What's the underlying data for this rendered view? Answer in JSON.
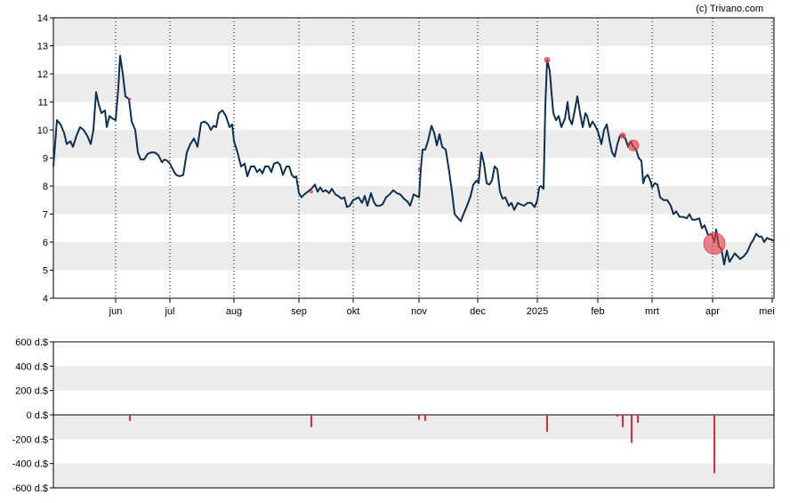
{
  "credit": "(c) Trivano.com",
  "chart_data": [
    {
      "type": "line",
      "ylim": [
        4,
        14
      ],
      "y_ticks": [
        "4",
        "5",
        "6",
        "7",
        "8",
        "9",
        "10",
        "11",
        "12",
        "13",
        "14"
      ],
      "x_ticks": [
        {
          "label": "jun",
          "t": 70
        },
        {
          "label": "jul",
          "t": 131
        },
        {
          "label": "aug",
          "t": 203
        },
        {
          "label": "sep",
          "t": 276
        },
        {
          "label": "okt",
          "t": 337
        },
        {
          "label": "nov",
          "t": 411
        },
        {
          "label": "dec",
          "t": 477
        },
        {
          "label": "2025",
          "t": 544
        },
        {
          "label": "feb",
          "t": 612
        },
        {
          "label": "mrt",
          "t": 673
        },
        {
          "label": "apr",
          "t": 741
        },
        {
          "label": "mei",
          "t": 808
        }
      ],
      "t_range": [
        0,
        810
      ],
      "grid": "alternating horizontal bands, dotted vertical month lines",
      "colors": {
        "line": "#0d3050",
        "band": "#ececec",
        "marker": "#e8404a"
      },
      "series": [
        {
          "points": [
            [
              0,
              8.7
            ],
            [
              4,
              10.35
            ],
            [
              8,
              10.2
            ],
            [
              12,
              9.9
            ],
            [
              15,
              9.5
            ],
            [
              19,
              9.6
            ],
            [
              22,
              9.4
            ],
            [
              26,
              9.8
            ],
            [
              30,
              10.1
            ],
            [
              34,
              10.0
            ],
            [
              38,
              9.8
            ],
            [
              42,
              9.5
            ],
            [
              45,
              10.0
            ],
            [
              48,
              11.35
            ],
            [
              51,
              10.9
            ],
            [
              54,
              10.6
            ],
            [
              58,
              10.7
            ],
            [
              60,
              10.1
            ],
            [
              63,
              10.5
            ],
            [
              67,
              10.4
            ],
            [
              70,
              10.35
            ],
            [
              73,
              11.5
            ],
            [
              75,
              12.65
            ],
            [
              78,
              12.0
            ],
            [
              81,
              11.2
            ],
            [
              85,
              11.1
            ],
            [
              88,
              10.3
            ],
            [
              92,
              10.0
            ],
            [
              95,
              9.2
            ],
            [
              98,
              8.95
            ],
            [
              102,
              8.95
            ],
            [
              106,
              9.15
            ],
            [
              110,
              9.2
            ],
            [
              114,
              9.2
            ],
            [
              118,
              9.1
            ],
            [
              122,
              8.85
            ],
            [
              125,
              8.95
            ],
            [
              128,
              8.9
            ],
            [
              131,
              8.8
            ],
            [
              135,
              8.55
            ],
            [
              138,
              8.4
            ],
            [
              142,
              8.35
            ],
            [
              146,
              8.4
            ],
            [
              150,
              9.2
            ],
            [
              154,
              9.5
            ],
            [
              158,
              9.7
            ],
            [
              162,
              9.4
            ],
            [
              166,
              10.25
            ],
            [
              170,
              10.3
            ],
            [
              174,
              10.2
            ],
            [
              177,
              10.0
            ],
            [
              180,
              10.15
            ],
            [
              183,
              10.1
            ],
            [
              186,
              10.6
            ],
            [
              190,
              10.7
            ],
            [
              194,
              10.5
            ],
            [
              198,
              10.1
            ],
            [
              201,
              10.2
            ],
            [
              203,
              9.6
            ],
            [
              207,
              9.2
            ],
            [
              211,
              8.7
            ],
            [
              215,
              8.8
            ],
            [
              218,
              8.35
            ],
            [
              222,
              8.7
            ],
            [
              226,
              8.7
            ],
            [
              229,
              8.5
            ],
            [
              232,
              8.6
            ],
            [
              235,
              8.45
            ],
            [
              238,
              8.7
            ],
            [
              242,
              8.7
            ],
            [
              245,
              8.5
            ],
            [
              248,
              8.8
            ],
            [
              252,
              8.85
            ],
            [
              255,
              8.75
            ],
            [
              258,
              8.4
            ],
            [
              262,
              8.7
            ],
            [
              265,
              8.7
            ],
            [
              268,
              8.4
            ],
            [
              271,
              8.3
            ],
            [
              273,
              8.35
            ],
            [
              276,
              7.75
            ],
            [
              279,
              7.6
            ],
            [
              282,
              7.7
            ],
            [
              286,
              7.8
            ],
            [
              290,
              7.9
            ],
            [
              294,
              8.05
            ],
            [
              297,
              7.8
            ],
            [
              300,
              7.95
            ],
            [
              303,
              7.8
            ],
            [
              306,
              7.85
            ],
            [
              310,
              7.75
            ],
            [
              313,
              7.9
            ],
            [
              317,
              7.7
            ],
            [
              320,
              7.65
            ],
            [
              324,
              7.55
            ],
            [
              327,
              7.6
            ],
            [
              330,
              7.25
            ],
            [
              333,
              7.3
            ],
            [
              337,
              7.5
            ],
            [
              340,
              7.55
            ],
            [
              343,
              7.6
            ],
            [
              347,
              7.4
            ],
            [
              350,
              7.65
            ],
            [
              353,
              7.3
            ],
            [
              357,
              7.75
            ],
            [
              360,
              7.45
            ],
            [
              363,
              7.3
            ],
            [
              367,
              7.3
            ],
            [
              370,
              7.35
            ],
            [
              374,
              7.6
            ],
            [
              378,
              7.7
            ],
            [
              382,
              7.85
            ],
            [
              386,
              7.75
            ],
            [
              390,
              7.7
            ],
            [
              394,
              7.55
            ],
            [
              398,
              7.45
            ],
            [
              401,
              7.3
            ],
            [
              405,
              7.7
            ],
            [
              408,
              7.65
            ],
            [
              411,
              7.6
            ],
            [
              413,
              8.6
            ],
            [
              415,
              9.3
            ],
            [
              418,
              9.3
            ],
            [
              421,
              9.6
            ],
            [
              425,
              10.15
            ],
            [
              428,
              9.9
            ],
            [
              431,
              9.45
            ],
            [
              434,
              9.85
            ],
            [
              437,
              9.4
            ],
            [
              441,
              9.3
            ],
            [
              445,
              8.5
            ],
            [
              448,
              7.8
            ],
            [
              451,
              7.0
            ],
            [
              455,
              6.85
            ],
            [
              458,
              6.75
            ],
            [
              461,
              7.0
            ],
            [
              465,
              7.3
            ],
            [
              469,
              7.65
            ],
            [
              472,
              8.05
            ],
            [
              476,
              8.2
            ],
            [
              478,
              8.1
            ],
            [
              481,
              9.2
            ],
            [
              484,
              8.8
            ],
            [
              487,
              8.1
            ],
            [
              490,
              8.05
            ],
            [
              493,
              8.2
            ],
            [
              496,
              8.7
            ],
            [
              499,
              8.6
            ],
            [
              502,
              7.8
            ],
            [
              505,
              7.55
            ],
            [
              508,
              7.6
            ],
            [
              512,
              7.3
            ],
            [
              515,
              7.4
            ],
            [
              518,
              7.15
            ],
            [
              522,
              7.4
            ],
            [
              525,
              7.35
            ],
            [
              529,
              7.3
            ],
            [
              533,
              7.4
            ],
            [
              537,
              7.4
            ],
            [
              541,
              7.25
            ],
            [
              544,
              7.5
            ],
            [
              546,
              7.95
            ],
            [
              548,
              8.0
            ],
            [
              551,
              7.9
            ],
            [
              553,
              10.9
            ],
            [
              555,
              12.5
            ],
            [
              558,
              12.1
            ],
            [
              560,
              11.3
            ],
            [
              562,
              10.6
            ],
            [
              565,
              10.35
            ],
            [
              568,
              10.5
            ],
            [
              571,
              10.1
            ],
            [
              575,
              10.4
            ],
            [
              578,
              11.0
            ],
            [
              580,
              10.4
            ],
            [
              583,
              10.2
            ],
            [
              586,
              10.7
            ],
            [
              589,
              11.2
            ],
            [
              592,
              10.6
            ],
            [
              595,
              10.1
            ],
            [
              598,
              10.6
            ],
            [
              600,
              10.5
            ],
            [
              603,
              10.1
            ],
            [
              606,
              10.3
            ],
            [
              609,
              10.15
            ],
            [
              612,
              9.95
            ],
            [
              616,
              9.5
            ],
            [
              619,
              10.0
            ],
            [
              622,
              10.2
            ],
            [
              625,
              9.65
            ],
            [
              628,
              9.2
            ],
            [
              631,
              9.05
            ],
            [
              634,
              9.5
            ],
            [
              637,
              9.8
            ],
            [
              640,
              9.8
            ],
            [
              643,
              9.7
            ],
            [
              646,
              9.4
            ],
            [
              649,
              9.6
            ],
            [
              652,
              9.4
            ],
            [
              655,
              9.3
            ],
            [
              658,
              9.0
            ],
            [
              661,
              8.9
            ],
            [
              663,
              8.1
            ],
            [
              665,
              8.3
            ],
            [
              668,
              8.4
            ],
            [
              671,
              8.2
            ],
            [
              673,
              7.95
            ],
            [
              676,
              8.1
            ],
            [
              679,
              8.05
            ],
            [
              682,
              7.6
            ],
            [
              686,
              7.5
            ],
            [
              690,
              7.5
            ],
            [
              694,
              7.3
            ],
            [
              697,
              7.0
            ],
            [
              700,
              7.1
            ],
            [
              704,
              6.9
            ],
            [
              708,
              6.9
            ],
            [
              712,
              6.85
            ],
            [
              715,
              7.0
            ],
            [
              718,
              6.8
            ],
            [
              722,
              6.8
            ],
            [
              726,
              6.85
            ],
            [
              729,
              6.5
            ],
            [
              732,
              6.6
            ],
            [
              736,
              6.25
            ],
            [
              740,
              6.3
            ],
            [
              743,
              6.0
            ],
            [
              745,
              6.45
            ],
            [
              748,
              5.85
            ],
            [
              751,
              5.75
            ],
            [
              754,
              5.2
            ],
            [
              757,
              5.7
            ],
            [
              760,
              5.3
            ],
            [
              763,
              5.45
            ],
            [
              766,
              5.6
            ],
            [
              769,
              5.5
            ],
            [
              772,
              5.4
            ],
            [
              776,
              5.5
            ],
            [
              780,
              5.65
            ],
            [
              784,
              5.95
            ],
            [
              787,
              6.1
            ],
            [
              790,
              6.3
            ],
            [
              793,
              6.2
            ],
            [
              796,
              6.2
            ],
            [
              799,
              6.0
            ],
            [
              802,
              6.15
            ],
            [
              806,
              6.1
            ],
            [
              810,
              6.05
            ]
          ]
        }
      ],
      "markers": [
        {
          "t": 86,
          "y": 11.1,
          "size": 1
        },
        {
          "t": 290,
          "y": 7.8,
          "size": 1.5
        },
        {
          "t": 411,
          "y": 8.6,
          "size": 1
        },
        {
          "t": 555,
          "y": 12.5,
          "size": 3
        },
        {
          "t": 640,
          "y": 9.8,
          "size": 3
        },
        {
          "t": 652,
          "y": 9.45,
          "size": 6
        },
        {
          "t": 743,
          "y": 5.95,
          "size": 12
        }
      ]
    },
    {
      "type": "bar",
      "ylim": [
        -600,
        600
      ],
      "y_ticks": [
        "600 d.$",
        "400 d.$",
        "200 d.$",
        "0 d.$",
        "-200 d.$",
        "-400 d.$",
        "-600 d.$"
      ],
      "colors": {
        "bar": "#e8283a",
        "band": "#ececec"
      },
      "bars": [
        {
          "t": 86,
          "value": -50
        },
        {
          "t": 290,
          "value": -100
        },
        {
          "t": 411,
          "value": -40
        },
        {
          "t": 418,
          "value": -50
        },
        {
          "t": 555,
          "value": -140
        },
        {
          "t": 634,
          "value": -15
        },
        {
          "t": 640,
          "value": -100
        },
        {
          "t": 650,
          "value": -230
        },
        {
          "t": 657,
          "value": -65
        },
        {
          "t": 743,
          "value": -480
        }
      ]
    }
  ]
}
